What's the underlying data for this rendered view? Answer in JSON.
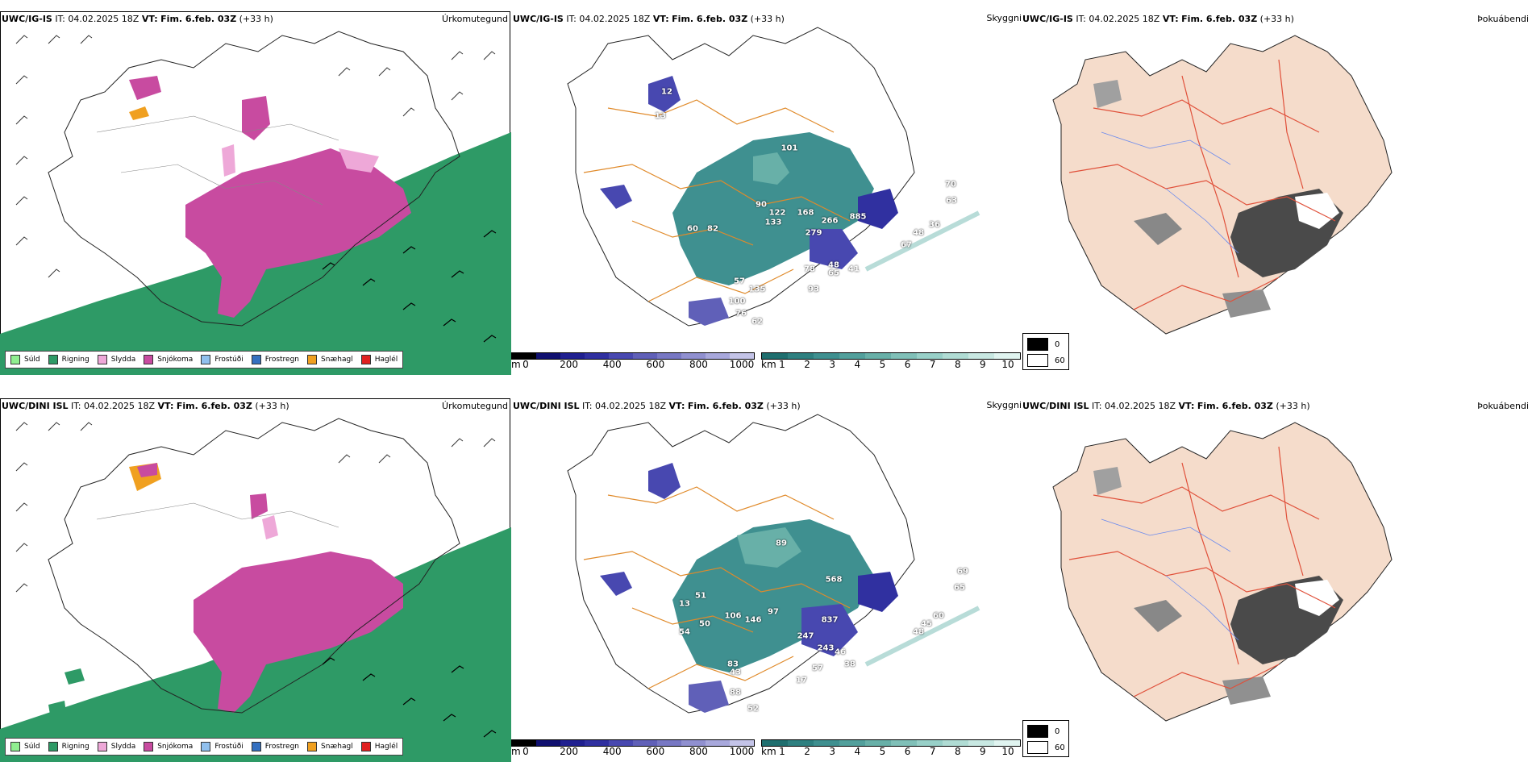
{
  "rows": [
    {
      "model": "UWC/IG-IS",
      "precip": {
        "title": "Úrkomutegund",
        "legend": [
          {
            "label": "Súld",
            "color": "#90ee90"
          },
          {
            "label": "Rigning",
            "color": "#2e9a66"
          },
          {
            "label": "Slydda",
            "color": "#eea8d8"
          },
          {
            "label": "Snjókoma",
            "color": "#c84ba0"
          },
          {
            "label": "Frostúði",
            "color": "#90c0ee"
          },
          {
            "label": "Frostregn",
            "color": "#3470c0"
          },
          {
            "label": "Snæhagl",
            "color": "#f0a020"
          },
          {
            "label": "Haglél",
            "color": "#e02020"
          }
        ]
      },
      "cloud": {
        "title": "Skyggni",
        "values": [
          "90",
          "122",
          "60",
          "82",
          "133",
          "168",
          "266",
          "885",
          "279",
          "101",
          "78",
          "48",
          "41",
          "65",
          "93",
          "57",
          "135",
          "100",
          "76",
          "62",
          "48",
          "36",
          "70",
          "63",
          "67",
          "13",
          "12"
        ]
      },
      "fog": {
        "title": "Þokuábendi"
      }
    },
    {
      "model": "UWC/DINI ISL",
      "precip": {
        "title": "Úrkomutegund",
        "legend": [
          {
            "label": "Súld",
            "color": "#90ee90"
          },
          {
            "label": "Rigning",
            "color": "#2e9a66"
          },
          {
            "label": "Slydda",
            "color": "#eea8d8"
          },
          {
            "label": "Snjókoma",
            "color": "#c84ba0"
          },
          {
            "label": "Frostúði",
            "color": "#90c0ee"
          },
          {
            "label": "Frostregn",
            "color": "#3470c0"
          },
          {
            "label": "Snæhagl",
            "color": "#f0a020"
          },
          {
            "label": "Haglél",
            "color": "#e02020"
          }
        ]
      },
      "cloud": {
        "title": "Skyggni",
        "values": [
          "568",
          "97",
          "106",
          "146",
          "50",
          "54",
          "837",
          "247",
          "243",
          "46",
          "57",
          "38",
          "43",
          "88",
          "52",
          "48",
          "45",
          "60",
          "69",
          "65",
          "89",
          "13",
          "83",
          "17",
          "51"
        ]
      },
      "fog": {
        "title": "Þokuábendi"
      }
    }
  ],
  "header": {
    "it_label": "IT:",
    "it_value": "04.02.2025 18Z",
    "vt_label": "VT:",
    "vt_value": "Fim. 6.feb. 03Z",
    "lead": "(+33 h)"
  },
  "colorbars": {
    "height": {
      "unit": "m",
      "ticks": [
        "0",
        "200",
        "400",
        "600",
        "800",
        "1000"
      ],
      "colors": [
        "#000000",
        "#101070",
        "#202090",
        "#3030a0",
        "#4848b0",
        "#6060b8",
        "#7878c4",
        "#9090d0",
        "#a8a8dc",
        "#c4c4e8"
      ]
    },
    "visibility": {
      "unit": "km",
      "ticks": [
        "1",
        "2",
        "3",
        "4",
        "5",
        "6",
        "7",
        "8",
        "9",
        "10"
      ],
      "colors": [
        "#1f6f6f",
        "#2e8080",
        "#3f9090",
        "#52a09c",
        "#68b0a8",
        "#80c0b8",
        "#98d0c8",
        "#b0dcd4",
        "#c8e8e2",
        "#e0f4f0"
      ]
    },
    "fog": {
      "items": [
        {
          "label": "0",
          "color": "#000000"
        },
        {
          "label": "60",
          "color": "#ffffff"
        }
      ]
    }
  }
}
